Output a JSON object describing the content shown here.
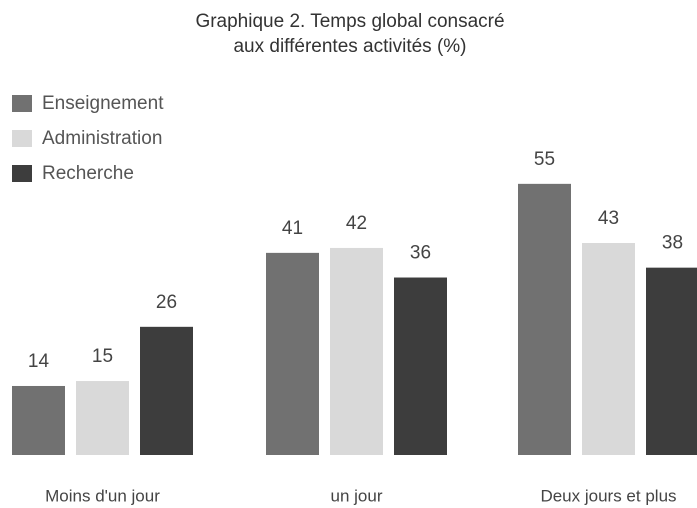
{
  "chart_data": {
    "type": "bar",
    "title": [
      "Graphique 2. Temps global consacré",
      "aux différentes activités (%)"
    ],
    "categories": [
      "Moins d'un jour",
      "un jour",
      "Deux jours et plus"
    ],
    "series": [
      {
        "name": "Enseignement",
        "color": "#717171",
        "values": [
          14,
          41,
          55
        ]
      },
      {
        "name": "Administration",
        "color": "#d9d9d9",
        "values": [
          15,
          42,
          43
        ]
      },
      {
        "name": "Recherche",
        "color": "#3d3d3d",
        "values": [
          26,
          36,
          38
        ]
      }
    ],
    "legend": "top-left"
  }
}
